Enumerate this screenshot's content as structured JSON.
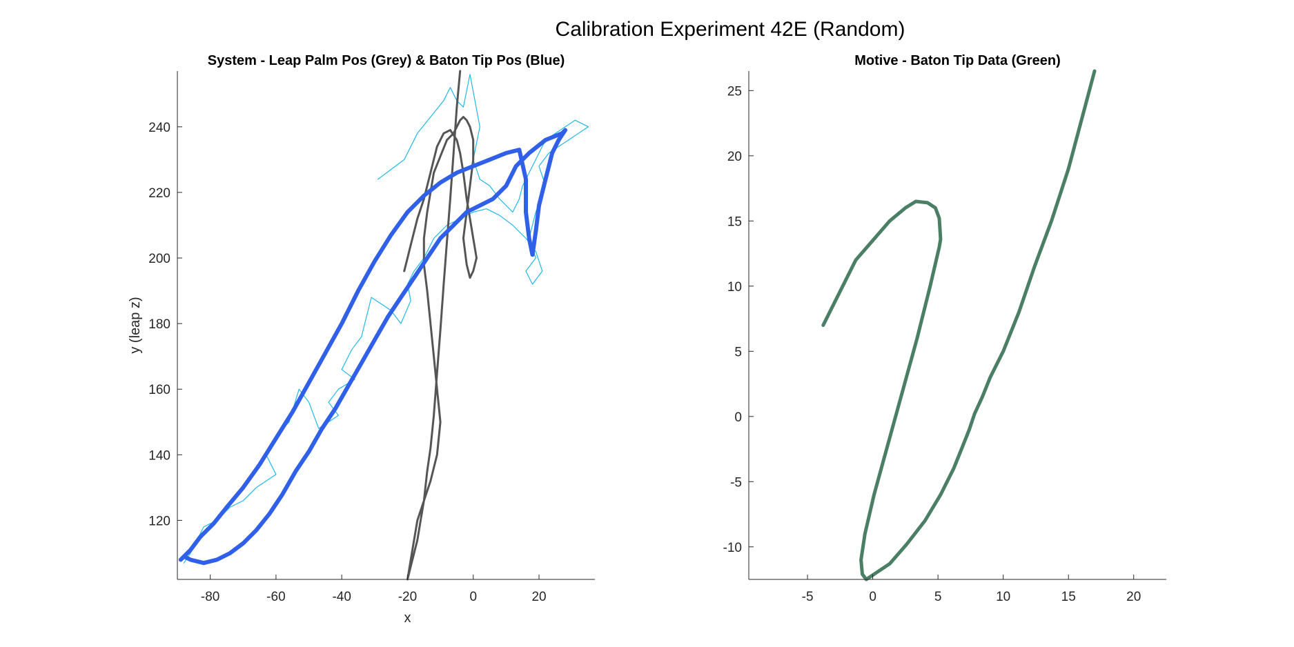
{
  "figure_title": "Calibration Experiment 42E (Random)",
  "chart_data": [
    {
      "type": "line",
      "title": "System - Leap Palm Pos (Grey) & Baton Tip Pos (Blue)",
      "xlabel": "x",
      "ylabel": "y (leap z)",
      "xlim": [
        -90,
        37
      ],
      "ylim": [
        102,
        257
      ],
      "xticks": [
        -80,
        -60,
        -40,
        -20,
        0,
        20
      ],
      "yticks": [
        120,
        140,
        160,
        180,
        200,
        220,
        240
      ],
      "grid": false,
      "series": [
        {
          "color": "#1fb8e6",
          "width": 1.2,
          "x": [
            -29,
            -21,
            -17,
            -9,
            -7,
            -5,
            -3,
            -1,
            2,
            0,
            2,
            5,
            8,
            12,
            14,
            15,
            18,
            22,
            28,
            31,
            35,
            29,
            23,
            20,
            22,
            19,
            17,
            19,
            16,
            18,
            21,
            19,
            16,
            12,
            8,
            4,
            0,
            -4,
            -8,
            -12,
            -15,
            -18,
            -20,
            -19,
            -22,
            -25,
            -28,
            -31,
            -34,
            -37,
            -40,
            -36,
            -41,
            -44,
            -41,
            -47,
            -50,
            -53,
            -56,
            -60,
            -63,
            -60,
            -66,
            -70,
            -74,
            -78,
            -82,
            -84,
            -86,
            -88
          ],
          "y": [
            224,
            230,
            238,
            248,
            252,
            248,
            246,
            256,
            240,
            230,
            224,
            222,
            218,
            214,
            218,
            222,
            228,
            236,
            240,
            242,
            240,
            236,
            232,
            228,
            222,
            214,
            206,
            200,
            196,
            192,
            196,
            202,
            206,
            210,
            213,
            215,
            214,
            212,
            210,
            206,
            200,
            196,
            192,
            187,
            180,
            184,
            186,
            188,
            176,
            172,
            166,
            163,
            160,
            156,
            152,
            148,
            156,
            160,
            150,
            146,
            140,
            134,
            130,
            126,
            124,
            120,
            118,
            114,
            110,
            107
          ]
        },
        {
          "color": "#555555",
          "width": 3,
          "x": [
            -4,
            -5,
            -6,
            -7,
            -8,
            -9,
            -10,
            -11,
            -12,
            -13,
            -14,
            -15,
            -16,
            -17,
            -18,
            -19,
            -20,
            -19,
            -18,
            -17,
            -15,
            -13,
            -11,
            -10,
            -11,
            -12,
            -13,
            -14,
            -15,
            -15,
            -14,
            -13,
            -12,
            -10,
            -8,
            -6,
            -5,
            -4,
            -3,
            -2,
            -1,
            0,
            0,
            -1,
            -2,
            -3,
            -2,
            -1,
            0,
            1,
            0,
            -1,
            -2,
            -3,
            -4,
            -5,
            -7,
            -9,
            -11,
            -13,
            -15,
            -17,
            -18,
            -19,
            -20,
            -21
          ],
          "y": [
            257,
            246,
            232,
            218,
            205,
            192,
            178,
            165,
            152,
            142,
            135,
            126,
            120,
            114,
            110,
            106,
            102,
            108,
            114,
            120,
            126,
            132,
            140,
            150,
            160,
            170,
            180,
            190,
            198,
            206,
            214,
            220,
            226,
            231,
            236,
            238,
            240,
            242,
            243,
            242,
            240,
            236,
            230,
            222,
            214,
            206,
            198,
            194,
            196,
            200,
            206,
            212,
            218,
            226,
            232,
            236,
            239,
            238,
            234,
            226,
            218,
            212,
            208,
            204,
            200,
            196
          ]
        },
        {
          "color": "#3060e8",
          "width": 6,
          "x": [
            -89,
            -86,
            -83,
            -79,
            -75,
            -70,
            -65,
            -60,
            -55,
            -50,
            -45,
            -40,
            -35,
            -30,
            -25,
            -20,
            -15,
            -10,
            -5,
            0,
            5,
            10,
            14,
            16,
            16,
            17,
            18,
            19,
            20,
            22,
            24,
            26,
            28,
            27,
            22,
            17,
            13,
            10,
            6,
            2,
            -2,
            -6,
            -10,
            -14,
            -18,
            -22,
            -26,
            -30,
            -34,
            -38,
            -42,
            -46,
            -50,
            -54,
            -58,
            -62,
            -66,
            -70,
            -74,
            -78,
            -82,
            -86,
            -88
          ],
          "y": [
            108,
            111,
            115,
            119,
            124,
            130,
            137,
            145,
            153,
            162,
            171,
            180,
            190,
            199,
            207,
            214,
            219,
            223,
            226,
            228,
            230,
            232,
            233,
            224,
            214,
            206,
            201,
            208,
            216,
            224,
            232,
            236,
            239,
            238,
            236,
            232,
            228,
            222,
            218,
            216,
            214,
            210,
            206,
            200,
            194,
            188,
            182,
            175,
            168,
            161,
            154,
            148,
            141,
            135,
            128,
            122,
            117,
            113,
            110,
            108,
            107,
            108,
            109
          ]
        }
      ]
    },
    {
      "type": "line",
      "title": "Motive - Baton Tip Data (Green)",
      "xlabel": "",
      "ylabel": "",
      "xlim": [
        -9.5,
        22.5
      ],
      "ylim": [
        -12.5,
        26.5
      ],
      "xticks": [
        -5,
        0,
        5,
        10,
        15,
        20
      ],
      "yticks": [
        -10,
        -5,
        0,
        5,
        10,
        15,
        20,
        25
      ],
      "grid": false,
      "series": [
        {
          "color": "#4a7f66",
          "width": 5,
          "x": [
            -3.8,
            -3.2,
            -2.3,
            -1.3,
            0.0,
            1.3,
            2.5,
            3.3,
            4.2,
            4.8,
            5.1,
            5.2,
            5.1,
            4.4,
            3.4,
            2.3,
            1.2,
            0.1,
            -0.6,
            -0.9,
            -0.8,
            -0.5,
            1.3,
            2.6,
            4.0,
            5.2,
            6.2,
            7.0,
            7.4,
            7.8,
            8.4,
            9.0,
            10.0,
            11.2,
            12.4,
            13.7,
            15.0,
            16.2,
            17.0
          ],
          "y": [
            7.0,
            8.2,
            10.0,
            12.0,
            13.5,
            15.0,
            16.0,
            16.5,
            16.4,
            16.0,
            15.2,
            13.6,
            13.0,
            10.0,
            6.0,
            2.0,
            -2.0,
            -6.0,
            -9.0,
            -11.0,
            -12.1,
            -12.5,
            -11.3,
            -9.8,
            -8.0,
            -6.0,
            -4.0,
            -2.0,
            -1.0,
            0.2,
            1.5,
            3.0,
            5.0,
            8.0,
            11.5,
            15.0,
            19.0,
            23.5,
            26.5
          ]
        }
      ]
    }
  ]
}
